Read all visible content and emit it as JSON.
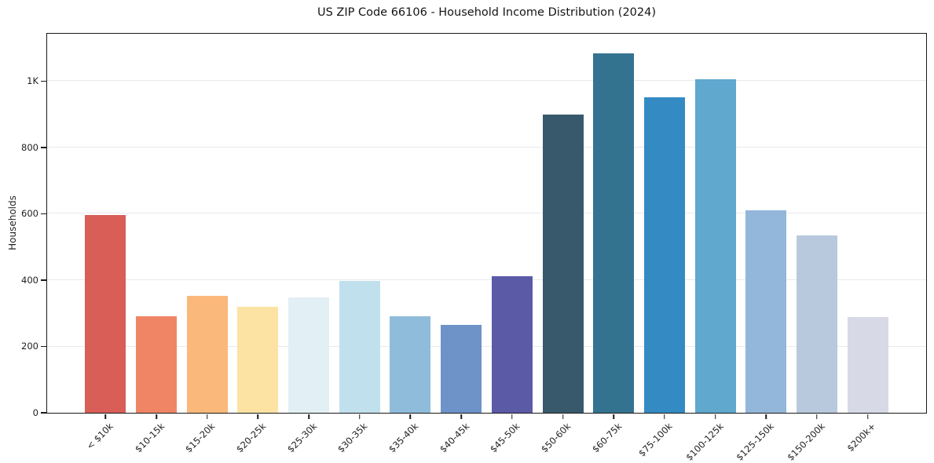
{
  "chart_data": {
    "type": "bar",
    "title": "US ZIP Code 66106 - Household Income Distribution (2024)",
    "xlabel": "",
    "ylabel": "Households",
    "categories": [
      "< $10k",
      "$10-15k",
      "$15-20k",
      "$20-25k",
      "$25-30k",
      "$30-35k",
      "$35-40k",
      "$40-45k",
      "$45-50k",
      "$50-60k",
      "$60-75k",
      "$75-100k",
      "$100-125k",
      "$125-150k",
      "$150-200k",
      "$200k+"
    ],
    "values": [
      597,
      290,
      352,
      320,
      349,
      398,
      290,
      265,
      411,
      899,
      1083,
      951,
      1006,
      610,
      534,
      289
    ],
    "bar_colors": [
      "#d85e57",
      "#f08566",
      "#fab97b",
      "#fce3a3",
      "#e2eff5",
      "#c1e0ee",
      "#8fbcdb",
      "#6d93c8",
      "#5b5aa7",
      "#38596c",
      "#347390",
      "#348bc3",
      "#60a8ce",
      "#92b7da",
      "#b8c9de",
      "#d7d9e6"
    ],
    "ylim": [
      0,
      1143
    ],
    "yticks": {
      "values": [
        0,
        200,
        400,
        600,
        800,
        1000
      ],
      "labels": [
        "0",
        "200",
        "400",
        "600",
        "800",
        "1K"
      ]
    },
    "gridline_values": [
      200,
      400,
      600,
      800,
      1000
    ],
    "grid": true,
    "legend_position": "none",
    "colors": {
      "background": "#ffffff",
      "spine": "#1a1a1a",
      "gridline": "#e9e9ec",
      "tick": "#1a1a1a",
      "text": "#1f1f1f"
    }
  }
}
